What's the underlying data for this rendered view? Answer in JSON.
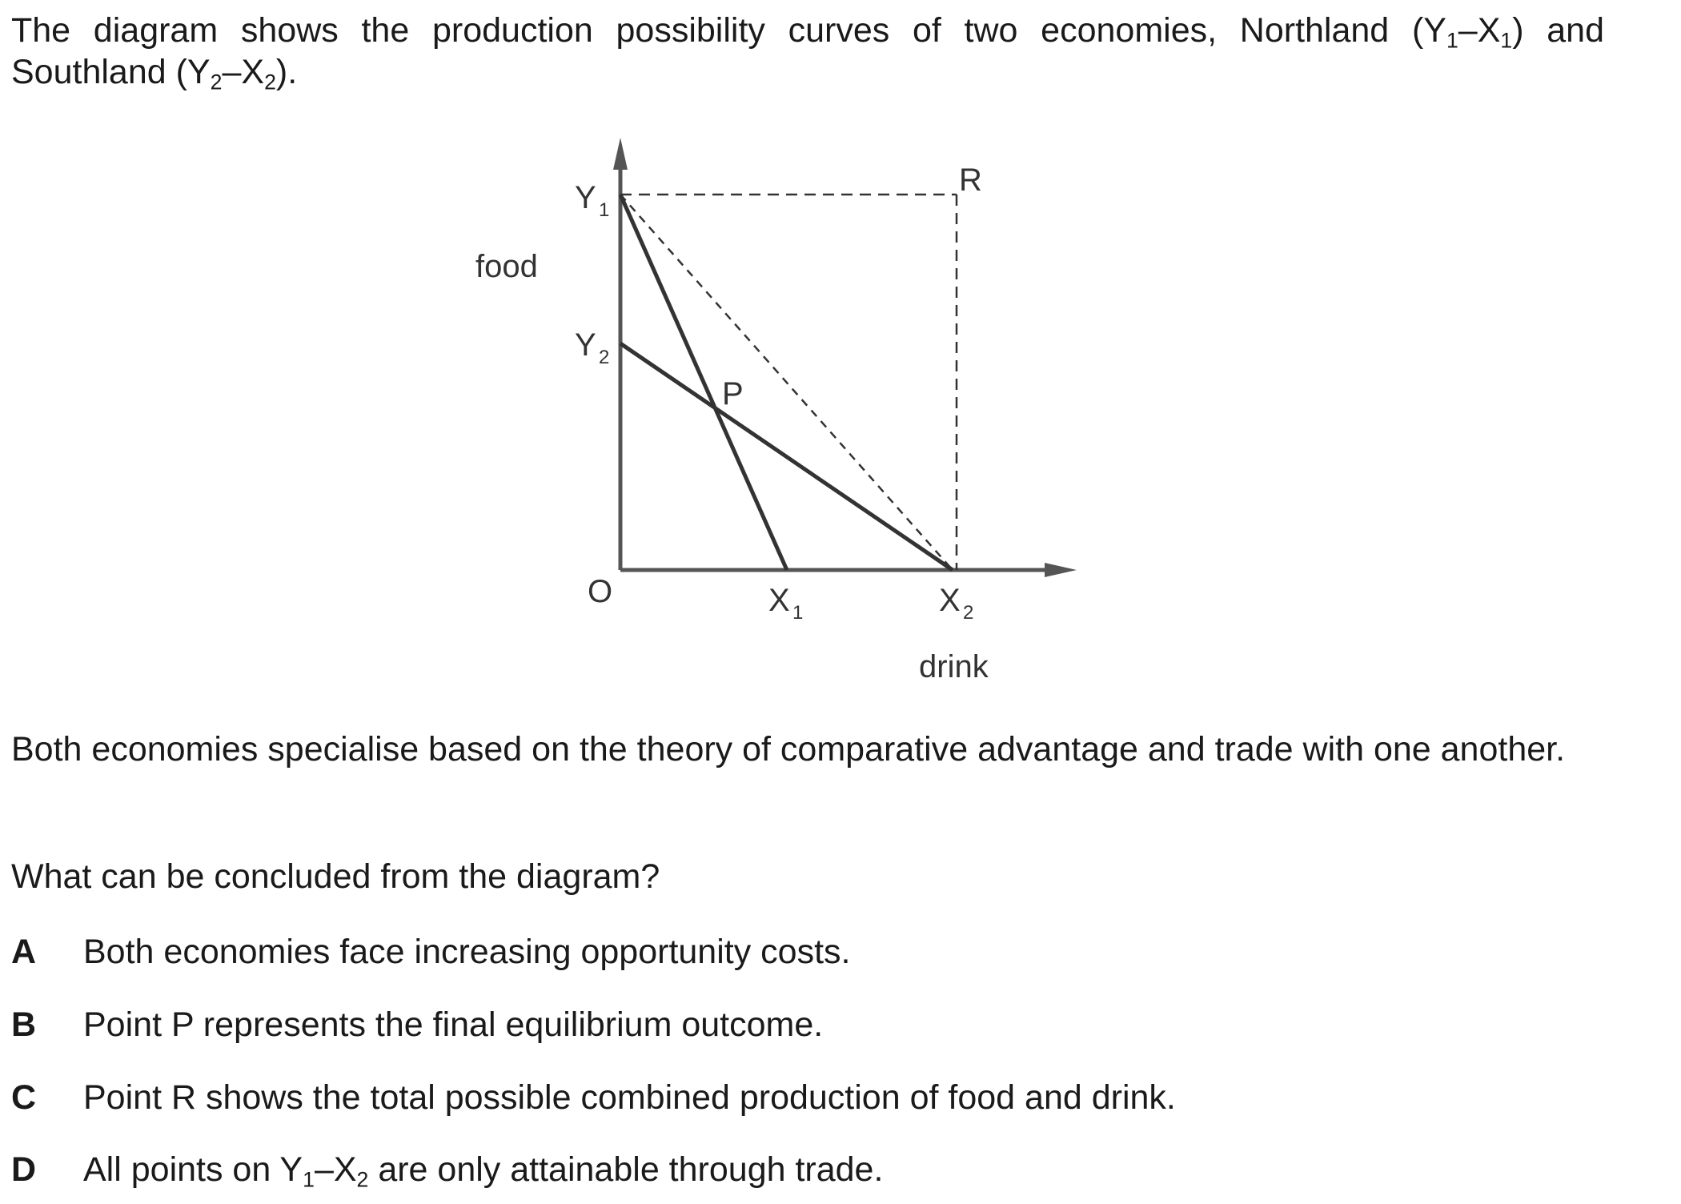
{
  "intro": {
    "text_before": "The diagram shows the production possibility curves of two economies, Northland (Y",
    "sub_1": "1",
    "dash_1": "–X",
    "sub_2": "1",
    "text_middle": ") and Southland (Y",
    "sub_3": "2",
    "dash_2": "–X",
    "sub_4": "2",
    "text_end": ")."
  },
  "diagram": {
    "y_axis_label": "food",
    "x_axis_label": "drink",
    "origin_label": "O",
    "points": {
      "Y1": {
        "letter": "Y",
        "sub": "1"
      },
      "Y2": {
        "letter": "Y",
        "sub": "2"
      },
      "X1": {
        "letter": "X",
        "sub": "1"
      },
      "X2": {
        "letter": "X",
        "sub": "2"
      },
      "P": {
        "letter": "P"
      },
      "R": {
        "letter": "R"
      }
    }
  },
  "context": {
    "text": "Both economies specialise based on the theory of comparative advantage and trade with one another."
  },
  "question": {
    "text": "What can be concluded from the diagram?"
  },
  "options": [
    {
      "letter": "A",
      "text": "Both economies face increasing opportunity costs."
    },
    {
      "letter": "B",
      "text": "Point P represents the final equilibrium outcome."
    },
    {
      "letter": "C",
      "text": "Point R shows the total possible combined production of food and drink."
    },
    {
      "letter": "D",
      "text_before": "All points on Y",
      "sub_1": "1",
      "dash": "–X",
      "sub_2": "2",
      "text_after": " are only attainable through trade."
    }
  ]
}
